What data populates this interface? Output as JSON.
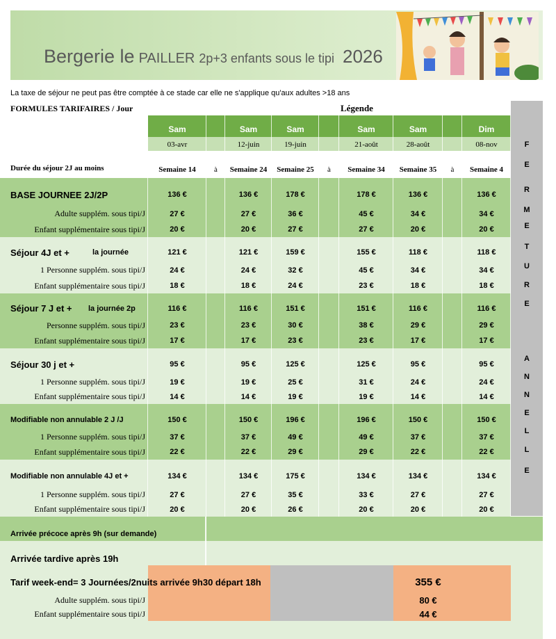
{
  "header": {
    "title_main": "Bergerie le",
    "title_caps": "PAILLER",
    "title_sub": "2p+3 enfants sous le tipi",
    "year": "2026"
  },
  "notice": "La taxe de séjour ne peut pas être comptée à ce stade car elle ne s'applique qu'aux adultes >18 ans",
  "formules": "FORMULES TARIFAIRES / Jour",
  "legende": "Légende",
  "duree": "Durée du séjour 2J au moins",
  "columns": {
    "days": [
      "Sam",
      "Sam",
      "Sam",
      "Sam",
      "Sam",
      "Dim"
    ],
    "dates": [
      "03-avr",
      "12-juin",
      "19-juin",
      "21-août",
      "28-août",
      "08-nov"
    ],
    "weeks": [
      "Semaine 14",
      "Semaine 24",
      "Semaine 25",
      "Semaine 34",
      "Semaine 35",
      "Semaine 4"
    ],
    "separators": [
      "à",
      "à",
      "à"
    ]
  },
  "closure": {
    "word1": [
      "F",
      "E",
      "R",
      "M",
      "E",
      "T",
      "U",
      "R",
      "E"
    ],
    "word2": [
      "A",
      "N",
      "N",
      "E",
      "L",
      "L",
      "E"
    ]
  },
  "groups": [
    {
      "rows": [
        {
          "label": "BASE JOURNEE  2J/2P",
          "prices": [
            "136 €",
            "136 €",
            "178 €",
            "178 €",
            "136 €",
            "136 €"
          ]
        },
        {
          "label": "Adulte supplém. sous tipi/J",
          "prices": [
            "27 €",
            "27 €",
            "36 €",
            "45 €",
            "34 €",
            "34 €"
          ]
        },
        {
          "label": "Enfant supplémentaire sous tipi/J",
          "prices": [
            "20 €",
            "20 €",
            "27 €",
            "27 €",
            "20 €",
            "20 €"
          ]
        }
      ]
    },
    {
      "note": "la journée",
      "rows": [
        {
          "label": "Séjour 4J et +",
          "prices": [
            "121 €",
            "121 €",
            "159 €",
            "155 €",
            "118 €",
            "118 €"
          ]
        },
        {
          "label": "1 Personne supplém. sous tipi/J",
          "prices": [
            "24 €",
            "24 €",
            "32 €",
            "45 €",
            "34 €",
            "34 €"
          ]
        },
        {
          "label": "Enfant supplémentaire sous tipi/J",
          "prices": [
            "18 €",
            "18 €",
            "24 €",
            "23 €",
            "18 €",
            "18 €"
          ]
        }
      ]
    },
    {
      "note": "la journée 2p",
      "rows": [
        {
          "label": "Séjour 7 J et +",
          "prices": [
            "116 €",
            "116 €",
            "151 €",
            "151 €",
            "116 €",
            "116 €"
          ]
        },
        {
          "label": "Personne supplém. sous tipi/J",
          "prices": [
            "23 €",
            "23 €",
            "30 €",
            "38 €",
            "29 €",
            "29 €"
          ]
        },
        {
          "label": "Enfant supplémentaire sous tipi/J",
          "prices": [
            "17 €",
            "17 €",
            "23 €",
            "23 €",
            "17 €",
            "17 €"
          ]
        }
      ]
    },
    {
      "rows": [
        {
          "label": "Séjour  30 j et +",
          "prices": [
            "95 €",
            "95 €",
            "125 €",
            "125 €",
            "95 €",
            "95 €"
          ]
        },
        {
          "label": "1 Personne supplém. sous tipi/J",
          "prices": [
            "19 €",
            "19 €",
            "25 €",
            "31 €",
            "24 €",
            "24 €"
          ]
        },
        {
          "label": "Enfant supplémentaire sous tipi/J",
          "prices": [
            "14 €",
            "14 €",
            "19 €",
            "19 €",
            "14 €",
            "14 €"
          ]
        }
      ]
    },
    {
      "rows": [
        {
          "label": "Modifiable non annulable 2 J /J",
          "prices": [
            "150 €",
            "150 €",
            "196 €",
            "196 €",
            "150 €",
            "150 €"
          ]
        },
        {
          "label": "1 Personne supplém. sous tipi/J",
          "prices": [
            "37 €",
            "37 €",
            "49 €",
            "49 €",
            "37 €",
            "37 €"
          ]
        },
        {
          "label": "Enfant supplémentaire sous tipi/J",
          "prices": [
            "22 €",
            "22 €",
            "29 €",
            "29 €",
            "22 €",
            "22 €"
          ]
        }
      ]
    },
    {
      "rows": [
        {
          "label": "Modifiable non annulable 4J et +",
          "prices": [
            "134 €",
            "134 €",
            "175 €",
            "134 €",
            "134 €",
            "134 €"
          ]
        },
        {
          "label": "1 Personne supplém. sous tipi/J",
          "prices": [
            "27 €",
            "27 €",
            "35 €",
            "33 €",
            "27 €",
            "27 €"
          ]
        },
        {
          "label": "Enfant supplémentaire sous tipi/J",
          "prices": [
            "20 €",
            "20 €",
            "26 €",
            "20 €",
            "20 €",
            "20 €"
          ]
        }
      ]
    }
  ],
  "extras": [
    "Arrivée précoce après 9h (sur demande)",
    "Arrivée tardive après 19h"
  ],
  "weekend": {
    "title": "Tarif week-end= 3 Journées/2nuits arrivée 9h30 départ 18h",
    "price": "355 €",
    "rows": [
      {
        "label": "Adulte supplém. sous tipi/J",
        "price": "80 €"
      },
      {
        "label": "Enfant supplémentaire sous tipi/J",
        "price": "44 €"
      }
    ]
  }
}
